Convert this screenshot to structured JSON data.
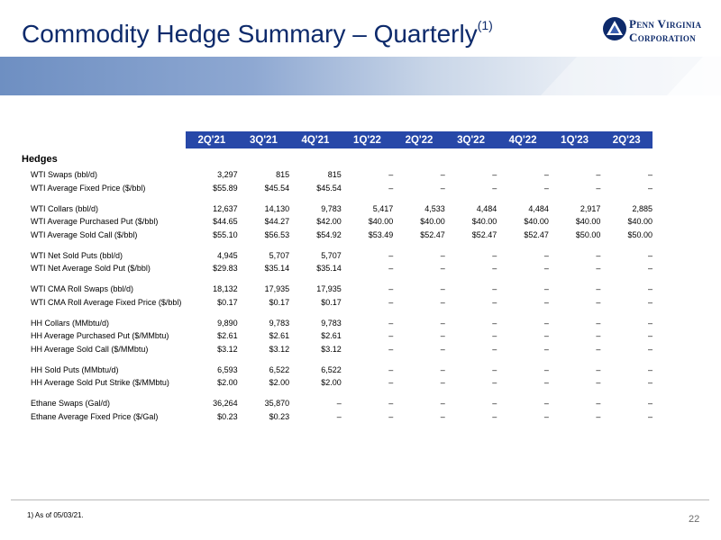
{
  "title": "Commodity Hedge Summary – Quarterly",
  "title_sup": "(1)",
  "logo": {
    "line1": "Penn Virginia",
    "line2": "Corporation",
    "icon": "triangle-logo-icon"
  },
  "table": {
    "columns": [
      "2Q'21",
      "3Q'21",
      "4Q'21",
      "1Q'22",
      "2Q'22",
      "3Q'22",
      "4Q'22",
      "1Q'23",
      "2Q'23"
    ],
    "section": "Hedges",
    "groups": [
      [
        {
          "label": "WTI Swaps (bbl/d)",
          "values": [
            "3,297",
            "815",
            "815",
            "–",
            "–",
            "–",
            "–",
            "–",
            "–"
          ]
        },
        {
          "label": "WTI Average Fixed Price ($/bbl)",
          "values": [
            "$55.89",
            "$45.54",
            "$45.54",
            "–",
            "–",
            "–",
            "–",
            "–",
            "–"
          ]
        }
      ],
      [
        {
          "label": "WTI Collars (bbl/d)",
          "values": [
            "12,637",
            "14,130",
            "9,783",
            "5,417",
            "4,533",
            "4,484",
            "4,484",
            "2,917",
            "2,885"
          ]
        },
        {
          "label": "WTI Average Purchased Put ($/bbl)",
          "values": [
            "$44.65",
            "$44.27",
            "$42.00",
            "$40.00",
            "$40.00",
            "$40.00",
            "$40.00",
            "$40.00",
            "$40.00"
          ]
        },
        {
          "label": "WTI Average Sold Call ($/bbl)",
          "values": [
            "$55.10",
            "$56.53",
            "$54.92",
            "$53.49",
            "$52.47",
            "$52.47",
            "$52.47",
            "$50.00",
            "$50.00"
          ]
        }
      ],
      [
        {
          "label": "WTI Net Sold Puts (bbl/d)",
          "values": [
            "4,945",
            "5,707",
            "5,707",
            "–",
            "–",
            "–",
            "–",
            "–",
            "–"
          ]
        },
        {
          "label": "WTI Net Average Sold Put ($/bbl)",
          "values": [
            "$29.83",
            "$35.14",
            "$35.14",
            "–",
            "–",
            "–",
            "–",
            "–",
            "–"
          ]
        }
      ],
      [
        {
          "label": "WTI CMA Roll Swaps (bbl/d)",
          "values": [
            "18,132",
            "17,935",
            "17,935",
            "–",
            "–",
            "–",
            "–",
            "–",
            "–"
          ]
        },
        {
          "label": "WTI CMA Roll Average Fixed Price ($/bbl)",
          "values": [
            "$0.17",
            "$0.17",
            "$0.17",
            "–",
            "–",
            "–",
            "–",
            "–",
            "–"
          ]
        }
      ],
      [
        {
          "label": "HH Collars (MMbtu/d)",
          "values": [
            "9,890",
            "9,783",
            "9,783",
            "–",
            "–",
            "–",
            "–",
            "–",
            "–"
          ]
        },
        {
          "label": "HH Average Purchased Put ($/MMbtu)",
          "values": [
            "$2.61",
            "$2.61",
            "$2.61",
            "–",
            "–",
            "–",
            "–",
            "–",
            "–"
          ]
        },
        {
          "label": "HH Average Sold Call ($/MMbtu)",
          "values": [
            "$3.12",
            "$3.12",
            "$3.12",
            "–",
            "–",
            "–",
            "–",
            "–",
            "–"
          ]
        }
      ],
      [
        {
          "label": "HH Sold Puts (MMbtu/d)",
          "values": [
            "6,593",
            "6,522",
            "6,522",
            "–",
            "–",
            "–",
            "–",
            "–",
            "–"
          ]
        },
        {
          "label": "HH Average Sold Put Strike ($/MMbtu)",
          "values": [
            "$2.00",
            "$2.00",
            "$2.00",
            "–",
            "–",
            "–",
            "–",
            "–",
            "–"
          ]
        }
      ],
      [
        {
          "label": "Ethane Swaps (Gal/d)",
          "values": [
            "36,264",
            "35,870",
            "–",
            "–",
            "–",
            "–",
            "–",
            "–",
            "–"
          ]
        },
        {
          "label": "Ethane Average Fixed Price ($/Gal)",
          "values": [
            "$0.23",
            "$0.23",
            "–",
            "–",
            "–",
            "–",
            "–",
            "–",
            "–"
          ]
        }
      ]
    ]
  },
  "footnote": "1)  As of 05/03/21.",
  "page_number": "22",
  "colors": {
    "title": "#0d2a6b",
    "header_fill": "#2748a8",
    "band_dark": "#6e8fc2",
    "band_light": "#e9eef5"
  }
}
